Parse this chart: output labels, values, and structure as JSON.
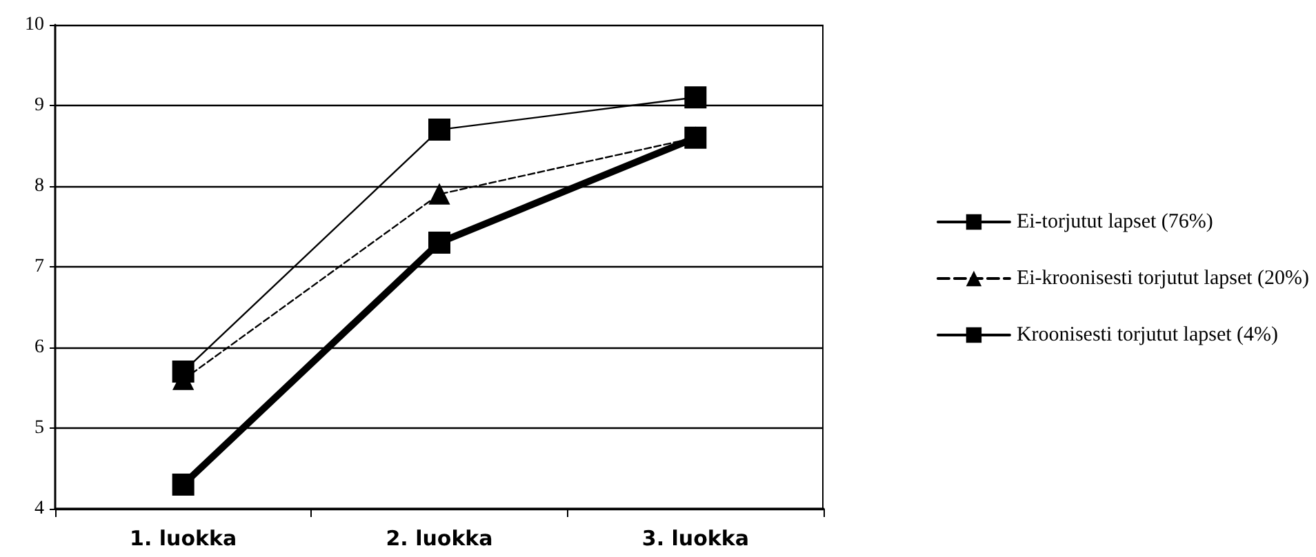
{
  "chart_data": {
    "type": "line",
    "categories": [
      "1. luokka",
      "2. luokka",
      "3. luokka"
    ],
    "series": [
      {
        "name": "Ei-torjutut lapset (76%)",
        "color": "#000000",
        "values": [
          5.7,
          8.7,
          9.1
        ],
        "marker": "square",
        "line_style": "solid"
      },
      {
        "name": "Ei-kroonisesti torjutut lapset (20%)",
        "color": "#000000",
        "values": [
          5.6,
          7.9,
          8.6
        ],
        "marker": "triangle",
        "line_style": "dashed"
      },
      {
        "name": "Kroonisesti torjutut lapset (4%)",
        "color": "#000000",
        "values": [
          4.3,
          7.3,
          8.6
        ],
        "marker": "square",
        "line_style": "solid"
      }
    ],
    "ylim": [
      4,
      10
    ],
    "yticks": [
      4,
      5,
      6,
      7,
      8,
      9,
      10
    ],
    "grid": "y",
    "legend": "right"
  }
}
